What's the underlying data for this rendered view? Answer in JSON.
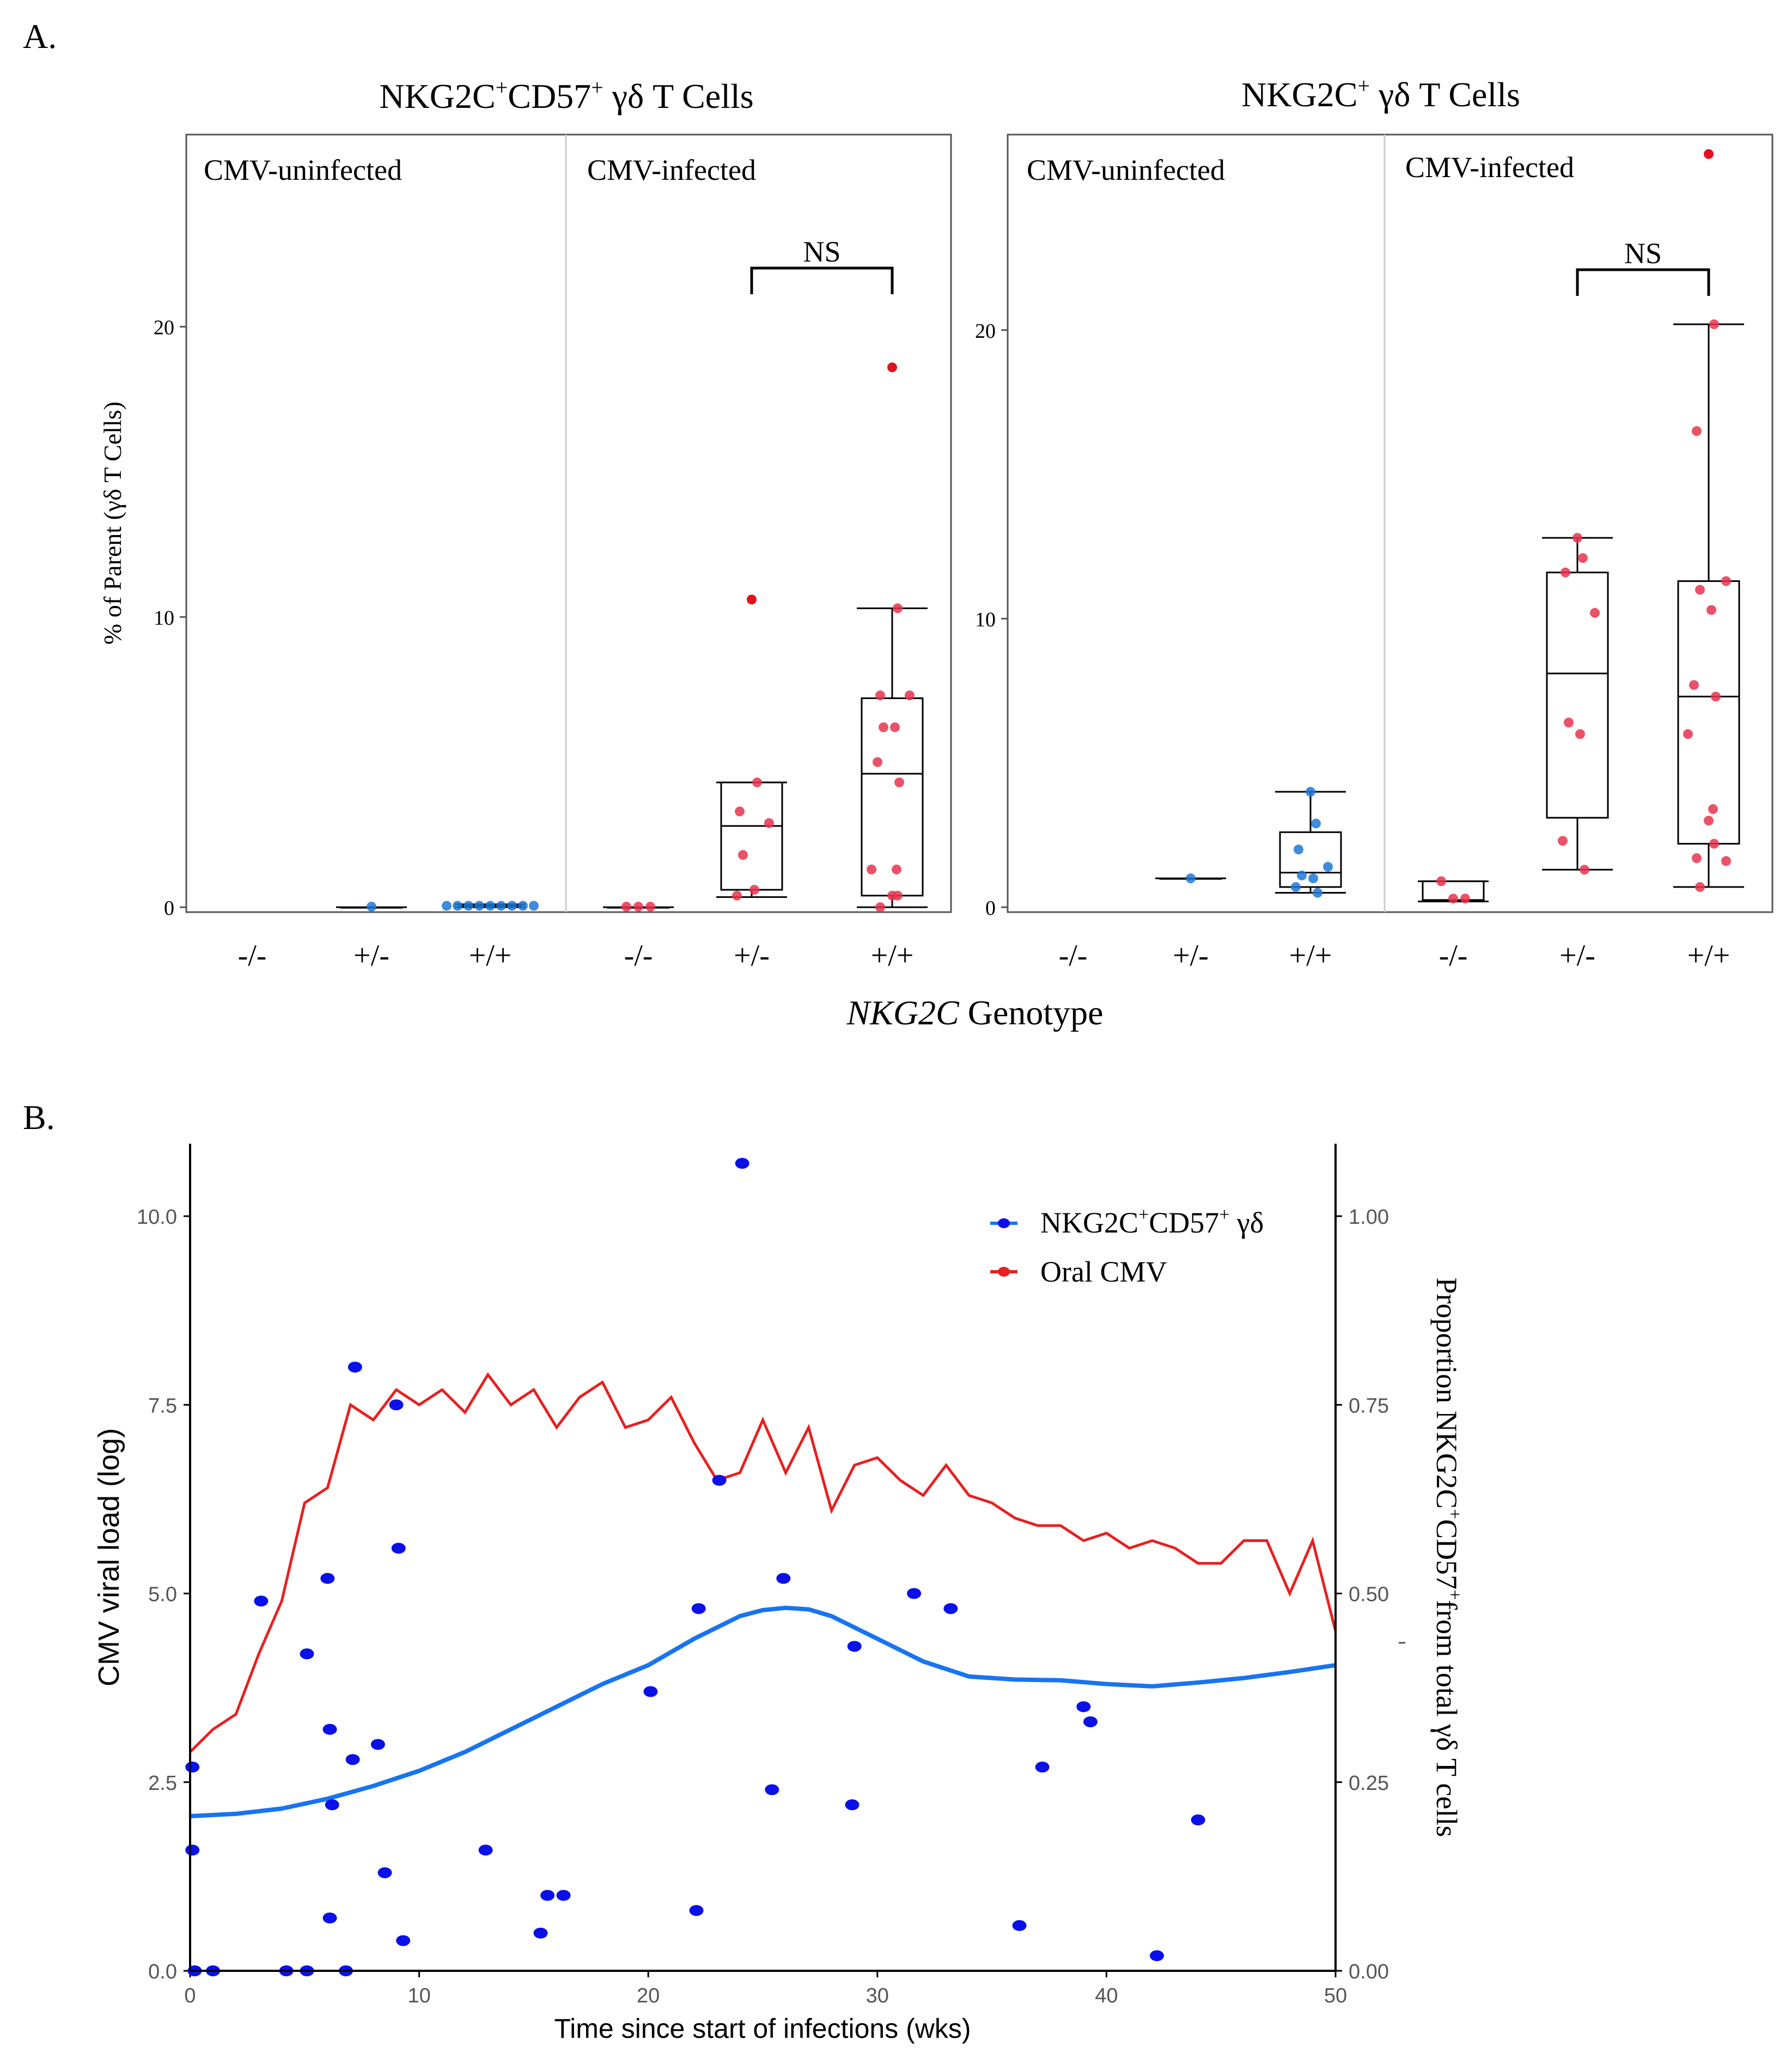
{
  "panel_labels": {
    "a": "A.",
    "b": "B."
  },
  "panel_a": {
    "x_title_italic": "NKG2C",
    "x_title_rest": " Genotype",
    "y_title": "% of Parent (γδ T Cells)",
    "facet_labels": {
      "uninfected": "CMV-uninfected",
      "infected": "CMV-infected"
    },
    "genotypes": [
      "-/-",
      "+/-",
      "+/+"
    ],
    "significance": "NS",
    "colors": {
      "uninfected": "#1f78d6",
      "infected": "#e8344e",
      "outlier": "#e3101e"
    }
  },
  "chart_data": [
    {
      "type": "box",
      "title": "NKG2C⁺CD57⁺ γδ T Cells",
      "title_parts": {
        "a": "NKG2C",
        "sup1": "+",
        "b": "CD57",
        "sup2": "+",
        "c": " γδ T Cells"
      },
      "ylabel": "% of Parent (γδ T Cells)",
      "xlabel": "NKG2C Genotype",
      "ylim": [
        0,
        26
      ],
      "yticks": [
        0,
        10,
        20
      ],
      "ytick_labels": [
        "0",
        "10",
        "20"
      ],
      "comparison": {
        "groups": [
          "CMV-infected +/-",
          "CMV-infected +/+"
        ],
        "label": "NS"
      },
      "groups": [
        {
          "facet": "CMV-uninfected",
          "genotype": "-/-",
          "points": []
        },
        {
          "facet": "CMV-uninfected",
          "genotype": "+/-",
          "box": {
            "q1": 0,
            "median": 0,
            "q3": 0,
            "lo": 0,
            "hi": 0
          },
          "points": [
            0.02
          ]
        },
        {
          "facet": "CMV-uninfected",
          "genotype": "+/+",
          "box": {
            "q1": 0.02,
            "median": 0.05,
            "q3": 0.08,
            "lo": 0,
            "hi": 0.1
          },
          "points": [
            0.05,
            0.05,
            0.05,
            0.05,
            0.05,
            0.05,
            0.05,
            0.05,
            0.05
          ]
        },
        {
          "facet": "CMV-infected",
          "genotype": "-/-",
          "box": {
            "q1": 0,
            "median": 0,
            "q3": 0,
            "lo": 0,
            "hi": 0
          },
          "points": [
            0.02,
            0.02,
            0.02
          ]
        },
        {
          "facet": "CMV-infected",
          "genotype": "+/-",
          "box": {
            "q1": 0.6,
            "median": 2.8,
            "q3": 4.3,
            "lo": 0.35,
            "hi": 4.3
          },
          "points": [
            10.6,
            4.3,
            3.3,
            2.9,
            1.8,
            0.6,
            0.4
          ],
          "outliers": [
            10.6
          ]
        },
        {
          "facet": "CMV-infected",
          "genotype": "+/+",
          "box": {
            "q1": 0.4,
            "median": 4.6,
            "q3": 7.2,
            "lo": 0,
            "hi": 10.3
          },
          "points": [
            18.6,
            10.3,
            7.3,
            7.3,
            6.2,
            6.2,
            5.0,
            4.3,
            1.3,
            1.3,
            0.4,
            0.4,
            0.0
          ],
          "outliers": [
            18.6
          ]
        }
      ]
    },
    {
      "type": "box",
      "title": "NKG2C⁺ γδ T Cells",
      "title_parts": {
        "a": "NKG2C",
        "sup1": "+",
        "b": "",
        "sup2": "",
        "c": " γδ T Cells"
      },
      "ylabel": "% of Parent (γδ T Cells)",
      "xlabel": "NKG2C Genotype",
      "ylim": [
        0,
        26
      ],
      "yticks": [
        0,
        10,
        20
      ],
      "ytick_labels": [
        "0",
        "10",
        "20"
      ],
      "comparison": {
        "groups": [
          "CMV-infected +/-",
          "CMV-infected +/+"
        ],
        "label": "NS"
      },
      "groups": [
        {
          "facet": "CMV-uninfected",
          "genotype": "-/-",
          "points": []
        },
        {
          "facet": "CMV-uninfected",
          "genotype": "+/-",
          "box": {
            "q1": 1.0,
            "median": 1.0,
            "q3": 1.0,
            "lo": 1.0,
            "hi": 1.0
          },
          "points": [
            1.0
          ]
        },
        {
          "facet": "CMV-uninfected",
          "genotype": "+/+",
          "box": {
            "q1": 0.7,
            "median": 1.2,
            "q3": 2.6,
            "lo": 0.5,
            "hi": 4.0
          },
          "points": [
            4.0,
            2.9,
            2.0,
            1.4,
            1.1,
            1.0,
            0.7,
            0.5
          ]
        },
        {
          "facet": "CMV-infected",
          "genotype": "-/-",
          "box": {
            "q1": 0.2,
            "median": 0.25,
            "q3": 0.9,
            "lo": 0.2,
            "hi": 0.9
          },
          "points": [
            0.9,
            0.3,
            0.3
          ]
        },
        {
          "facet": "CMV-infected",
          "genotype": "+/-",
          "box": {
            "q1": 3.1,
            "median": 8.1,
            "q3": 11.6,
            "lo": 1.3,
            "hi": 12.8
          },
          "points": [
            12.8,
            12.1,
            11.6,
            10.2,
            6.4,
            6.0,
            2.3,
            1.3
          ]
        },
        {
          "facet": "CMV-infected",
          "genotype": "+/+",
          "box": {
            "q1": 2.2,
            "median": 7.3,
            "q3": 11.3,
            "lo": 0.7,
            "hi": 20.2
          },
          "points": [
            26.1,
            20.2,
            16.5,
            11.3,
            11.0,
            10.3,
            7.7,
            7.3,
            6.0,
            3.4,
            3.0,
            2.2,
            1.7,
            1.6,
            0.7
          ],
          "outliers": [
            26.1
          ]
        }
      ]
    },
    {
      "type": "scatter+line",
      "xlabel": "Time since start of infections (wks)",
      "ylabel": "CMV viral load (log)",
      "ylabel_right": "Proportion NKG2C⁺CD57⁺from total γδ T cells",
      "ylabel_right_parts": {
        "a": "Proportion NKG2C",
        "sup1": "+",
        "b": "CD57",
        "sup2": "+",
        "c": "from total γδ T cells"
      },
      "xlim": [
        0,
        50
      ],
      "ylim": [
        0,
        11
      ],
      "ylim_right": [
        0,
        1.1
      ],
      "xticks": [
        0,
        10,
        20,
        30,
        40,
        50
      ],
      "xtick_labels": [
        "0",
        "10",
        "20",
        "30",
        "40",
        "50"
      ],
      "yticks": [
        0,
        2.5,
        5,
        7.5,
        10
      ],
      "ytick_labels": [
        "0.0",
        "2.5",
        "5.0",
        "7.5",
        "10.0"
      ],
      "yticks_right": [
        0,
        0.25,
        0.5,
        0.75,
        1.0
      ],
      "ytick_labels_right": [
        "0.00",
        "0.25",
        "0.50",
        "0.75",
        "1.00"
      ],
      "legend": [
        {
          "label": "NKG2C⁺CD57⁺ γδ",
          "parts": {
            "a": "NKG2C",
            "sup1": "+",
            "b": "CD57",
            "sup2": "+",
            "c": " γδ"
          },
          "color": "#1874f0"
        },
        {
          "label": "Oral CMV",
          "parts": {
            "a": "Oral CMV",
            "sup1": "",
            "b": "",
            "sup2": "",
            "c": ""
          },
          "color": "#e82020"
        }
      ],
      "legend_position": "top-right",
      "series": [
        {
          "name": "Oral CMV",
          "type": "line",
          "axis": "left",
          "color": "#e82020",
          "x": [
            0,
            1,
            2,
            3,
            4,
            5,
            6,
            7,
            8,
            9,
            10,
            11,
            12,
            13,
            14,
            15,
            16,
            17,
            18,
            19,
            20,
            21,
            22,
            23,
            24,
            25,
            26,
            27,
            28,
            29,
            30,
            31,
            32,
            33,
            34,
            35,
            36,
            37,
            38,
            39,
            40,
            41,
            42,
            43,
            44,
            45,
            46,
            47,
            48,
            49,
            50
          ],
          "y": [
            2.9,
            3.2,
            3.4,
            4.2,
            4.9,
            6.2,
            6.4,
            7.5,
            7.3,
            7.7,
            7.5,
            7.7,
            7.4,
            7.9,
            7.5,
            7.7,
            7.2,
            7.6,
            7.8,
            7.2,
            7.3,
            7.6,
            7.0,
            6.5,
            6.6,
            7.3,
            6.6,
            7.2,
            6.1,
            6.7,
            6.8,
            6.5,
            6.3,
            6.7,
            6.3,
            6.2,
            6.0,
            5.9,
            5.9,
            5.7,
            5.8,
            5.6,
            5.7,
            5.6,
            5.4,
            5.4,
            5.7,
            5.7,
            5.0,
            5.7,
            4.5
          ]
        },
        {
          "name": "NKG2C⁺CD57⁺ γδ (smooth)",
          "type": "line",
          "axis": "right",
          "color": "#1874f0",
          "x": [
            0,
            2,
            4,
            6,
            8,
            10,
            12,
            14,
            16,
            18,
            20,
            22,
            24,
            25,
            26,
            27,
            28,
            30,
            32,
            34,
            36,
            38,
            40,
            42,
            44,
            46,
            48,
            50
          ],
          "y": [
            0.205,
            0.208,
            0.215,
            0.228,
            0.245,
            0.265,
            0.29,
            0.32,
            0.35,
            0.38,
            0.405,
            0.44,
            0.47,
            0.478,
            0.481,
            0.479,
            0.47,
            0.44,
            0.41,
            0.39,
            0.386,
            0.385,
            0.38,
            0.377,
            0.382,
            0.388,
            0.396,
            0.405
          ]
        },
        {
          "name": "NKG2C⁺CD57⁺ γδ",
          "type": "scatter",
          "axis": "left",
          "color": "#0a10e8",
          "x": [
            0.1,
            0.1,
            0.2,
            1.0,
            3.1,
            4.2,
            5.1,
            5.1,
            6.0,
            6.1,
            6.1,
            6.2,
            6.8,
            7.1,
            7.2,
            8.2,
            8.5,
            9.0,
            9.1,
            9.3,
            12.9,
            15.3,
            15.6,
            16.3,
            20.1,
            22.1,
            22.2,
            23.1,
            24.1,
            25.4,
            25.9,
            28.9,
            29.0,
            31.6,
            33.2,
            36.2,
            37.2,
            39.0,
            39.3,
            42.2,
            44.0
          ],
          "y": [
            2.7,
            1.6,
            0.0,
            0.0,
            4.9,
            0.0,
            4.2,
            0.0,
            5.2,
            3.2,
            0.7,
            2.2,
            0.0,
            2.8,
            8.0,
            3.0,
            1.3,
            7.5,
            5.6,
            0.4,
            1.6,
            0.5,
            1.0,
            1.0,
            3.7,
            0.8,
            4.8,
            6.5,
            10.7,
            2.4,
            5.2,
            2.2,
            4.3,
            5.0,
            4.8,
            0.6,
            2.7,
            3.5,
            3.3,
            0.2,
            2.0
          ]
        }
      ]
    }
  ]
}
